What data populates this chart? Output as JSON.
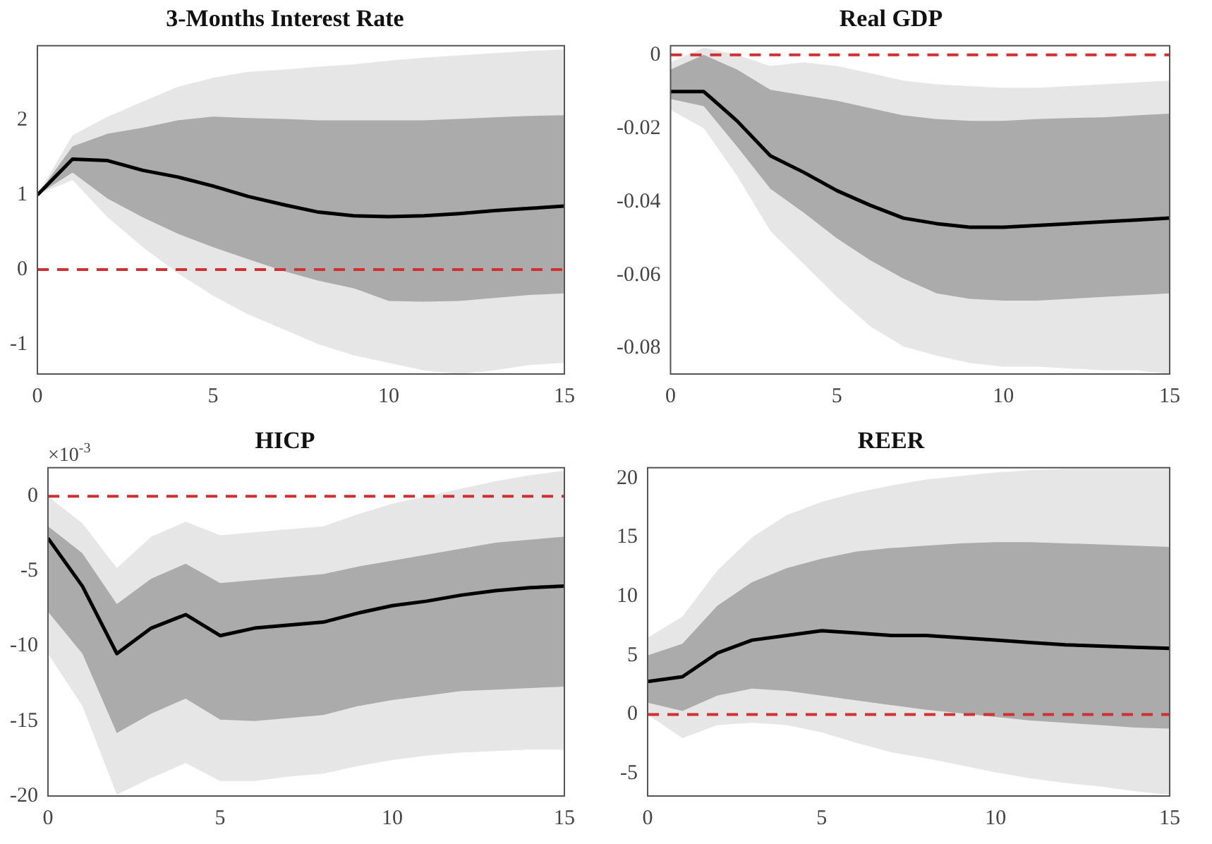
{
  "chart_data": [
    {
      "type": "line",
      "title": "3-Months Interest Rate",
      "x": [
        0,
        1,
        2,
        3,
        4,
        5,
        6,
        7,
        8,
        9,
        10,
        11,
        12,
        13,
        14,
        15
      ],
      "xlim": [
        0,
        15
      ],
      "xticks": [
        0,
        5,
        10,
        15
      ],
      "ylim": [
        -1.4,
        3.0
      ],
      "yticks": [
        -1,
        0,
        1,
        2
      ],
      "series": [
        {
          "color": "#e6e6e6",
          "values": [
            null,
            null,
            null,
            null,
            null,
            null,
            null,
            null,
            null,
            null,
            null,
            null,
            null,
            null,
            null,
            null
          ],
          "upper": [
            1.0,
            1.8,
            2.05,
            2.25,
            2.45,
            2.57,
            2.65,
            2.68,
            2.72,
            2.75,
            2.8,
            2.84,
            2.87,
            2.9,
            2.93,
            2.95
          ],
          "lower": [
            1.0,
            1.2,
            0.7,
            0.3,
            -0.05,
            -0.35,
            -0.6,
            -0.8,
            -1.0,
            -1.15,
            -1.25,
            -1.35,
            -1.4,
            -1.35,
            -1.28,
            -1.25
          ]
        },
        {
          "color": "#ababab",
          "values": [
            null,
            null,
            null,
            null,
            null,
            null,
            null,
            null,
            null,
            null,
            null,
            null,
            null,
            null,
            null,
            null
          ],
          "upper": [
            1.0,
            1.65,
            1.82,
            1.9,
            2.0,
            2.05,
            2.03,
            2.02,
            2.0,
            2.0,
            2.0,
            2.0,
            2.02,
            2.04,
            2.06,
            2.07
          ],
          "lower": [
            1.0,
            1.3,
            0.95,
            0.7,
            0.48,
            0.3,
            0.14,
            -0.02,
            -0.15,
            -0.25,
            -0.42,
            -0.43,
            -0.42,
            -0.38,
            -0.34,
            -0.32
          ]
        },
        {
          "color": "#000000",
          "values": [
            1.0,
            1.48,
            1.46,
            1.33,
            1.24,
            1.12,
            0.98,
            0.87,
            0.77,
            0.72,
            0.71,
            0.72,
            0.75,
            0.79,
            0.82,
            0.85
          ]
        }
      ],
      "ref_lines": [
        {
          "axis": "y",
          "value": 0,
          "color": "#d03030",
          "line_style": "dashed"
        }
      ]
    },
    {
      "type": "line",
      "title": "Real GDP",
      "x": [
        0,
        1,
        2,
        3,
        4,
        5,
        6,
        7,
        8,
        9,
        10,
        11,
        12,
        13,
        14,
        15
      ],
      "xlim": [
        0,
        15
      ],
      "xticks": [
        0,
        5,
        10,
        15
      ],
      "ylim": [
        -0.087,
        0.0025
      ],
      "yticks": [
        -0.08,
        -0.06,
        -0.04,
        -0.02,
        0
      ],
      "series": [
        {
          "color": "#e6e6e6",
          "values": [
            null,
            null,
            null,
            null,
            null,
            null,
            null,
            null,
            null,
            null,
            null,
            null,
            null,
            null,
            null,
            null
          ],
          "upper": [
            -0.002,
            0.002,
            0.0,
            -0.003,
            -0.002,
            -0.003,
            -0.005,
            -0.007,
            -0.008,
            -0.0085,
            -0.009,
            -0.009,
            -0.0085,
            -0.008,
            -0.0075,
            -0.007
          ],
          "lower": [
            -0.015,
            -0.02,
            -0.033,
            -0.048,
            -0.057,
            -0.066,
            -0.074,
            -0.0795,
            -0.082,
            -0.084,
            -0.085,
            -0.085,
            -0.0855,
            -0.086,
            -0.086,
            -0.087
          ]
        },
        {
          "color": "#ababab",
          "values": [
            null,
            null,
            null,
            null,
            null,
            null,
            null,
            null,
            null,
            null,
            null,
            null,
            null,
            null,
            null,
            null
          ],
          "upper": [
            -0.004,
            0.0,
            -0.004,
            -0.0095,
            -0.011,
            -0.0125,
            -0.0145,
            -0.0165,
            -0.0175,
            -0.018,
            -0.018,
            -0.0175,
            -0.0172,
            -0.017,
            -0.0165,
            -0.016
          ],
          "lower": [
            -0.012,
            -0.014,
            -0.025,
            -0.0365,
            -0.043,
            -0.05,
            -0.056,
            -0.061,
            -0.065,
            -0.0665,
            -0.067,
            -0.067,
            -0.0665,
            -0.066,
            -0.0655,
            -0.065
          ]
        },
        {
          "color": "#000000",
          "values": [
            -0.01,
            -0.01,
            -0.018,
            -0.0275,
            -0.032,
            -0.037,
            -0.041,
            -0.0445,
            -0.046,
            -0.047,
            -0.047,
            -0.0465,
            -0.046,
            -0.0455,
            -0.045,
            -0.0445
          ]
        }
      ],
      "ref_lines": [
        {
          "axis": "y",
          "value": 0,
          "color": "#d03030",
          "line_style": "dashed"
        }
      ]
    },
    {
      "type": "line",
      "title": "HICP",
      "annotations": [
        "×10$^{-3}$"
      ],
      "x": [
        0,
        1,
        2,
        3,
        4,
        5,
        6,
        7,
        8,
        9,
        10,
        11,
        12,
        13,
        14,
        15
      ],
      "xlim": [
        0,
        15
      ],
      "xticks": [
        0,
        5,
        10,
        15
      ],
      "ylim": [
        -20,
        1.9
      ],
      "yticks": [
        -20,
        -15,
        -10,
        -5,
        0
      ],
      "series": [
        {
          "color": "#e6e6e6",
          "values": [
            null,
            null,
            null,
            null,
            null,
            null,
            null,
            null,
            null,
            null,
            null,
            null,
            null,
            null,
            null,
            null
          ],
          "upper": [
            0,
            -1.8,
            -4.8,
            -2.7,
            -1.7,
            -2.6,
            -2.4,
            -2.2,
            -2.0,
            -1.2,
            -0.5,
            0.0,
            0.5,
            1.0,
            1.4,
            1.7
          ],
          "lower": [
            -10.5,
            -14,
            -19.9,
            -18.8,
            -17.8,
            -19.0,
            -19.0,
            -18.7,
            -18.5,
            -18.0,
            -17.6,
            -17.3,
            -17.1,
            -17.0,
            -16.9,
            -16.9
          ]
        },
        {
          "color": "#ababab",
          "values": [
            null,
            null,
            null,
            null,
            null,
            null,
            null,
            null,
            null,
            null,
            null,
            null,
            null,
            null,
            null,
            null
          ],
          "upper": [
            -2,
            -3.8,
            -7.2,
            -5.5,
            -4.5,
            -5.8,
            -5.6,
            -5.4,
            -5.2,
            -4.7,
            -4.3,
            -3.9,
            -3.5,
            -3.1,
            -2.9,
            -2.7
          ],
          "lower": [
            -7.7,
            -10.5,
            -15.8,
            -14.5,
            -13.5,
            -14.9,
            -15.0,
            -14.8,
            -14.6,
            -14.0,
            -13.6,
            -13.3,
            -13.0,
            -12.9,
            -12.8,
            -12.7
          ]
        },
        {
          "color": "#000000",
          "values": [
            -2.8,
            -6,
            -10.5,
            -8.8,
            -7.9,
            -9.3,
            -8.8,
            -8.6,
            -8.4,
            -7.8,
            -7.3,
            -7.0,
            -6.6,
            -6.3,
            -6.1,
            -6.0
          ]
        }
      ],
      "ref_lines": [
        {
          "axis": "y",
          "value": 0,
          "color": "#d03030",
          "line_style": "dashed"
        }
      ]
    },
    {
      "type": "line",
      "title": "REER",
      "x": [
        0,
        1,
        2,
        3,
        4,
        5,
        6,
        7,
        8,
        9,
        10,
        11,
        12,
        13,
        14,
        15
      ],
      "xlim": [
        0,
        15
      ],
      "xticks": [
        0,
        5,
        10,
        15
      ],
      "ylim": [
        -6.9,
        20.9
      ],
      "yticks": [
        -5,
        0,
        5,
        10,
        15,
        20
      ],
      "series": [
        {
          "color": "#e6e6e6",
          "values": [
            null,
            null,
            null,
            null,
            null,
            null,
            null,
            null,
            null,
            null,
            null,
            null,
            null,
            null,
            null,
            null
          ],
          "upper": [
            6.5,
            8.3,
            12.2,
            15.0,
            16.9,
            18.0,
            18.8,
            19.4,
            19.9,
            20.2,
            20.5,
            20.7,
            20.8,
            20.8,
            20.8,
            20.8
          ],
          "lower": [
            0.0,
            -2.0,
            -0.9,
            -0.7,
            -0.9,
            -1.5,
            -2.4,
            -3.2,
            -3.7,
            -4.3,
            -4.9,
            -5.4,
            -5.8,
            -6.1,
            -6.5,
            -6.8
          ]
        },
        {
          "color": "#ababab",
          "values": [
            null,
            null,
            null,
            null,
            null,
            null,
            null,
            null,
            null,
            null,
            null,
            null,
            null,
            null,
            null,
            null
          ],
          "upper": [
            5.0,
            6.0,
            9.2,
            11.2,
            12.4,
            13.2,
            13.8,
            14.1,
            14.3,
            14.5,
            14.6,
            14.6,
            14.5,
            14.4,
            14.3,
            14.2
          ],
          "lower": [
            1.0,
            0.3,
            1.6,
            2.2,
            2.0,
            1.6,
            1.2,
            0.8,
            0.4,
            0.1,
            -0.2,
            -0.5,
            -0.7,
            -0.9,
            -1.1,
            -1.2
          ]
        },
        {
          "color": "#000000",
          "values": [
            2.8,
            3.2,
            5.2,
            6.3,
            6.7,
            7.1,
            6.9,
            6.7,
            6.7,
            6.5,
            6.3,
            6.1,
            5.9,
            5.8,
            5.7,
            5.6
          ]
        }
      ],
      "ref_lines": [
        {
          "axis": "y",
          "value": 0,
          "color": "#d03030",
          "line_style": "dashed"
        }
      ]
    }
  ]
}
